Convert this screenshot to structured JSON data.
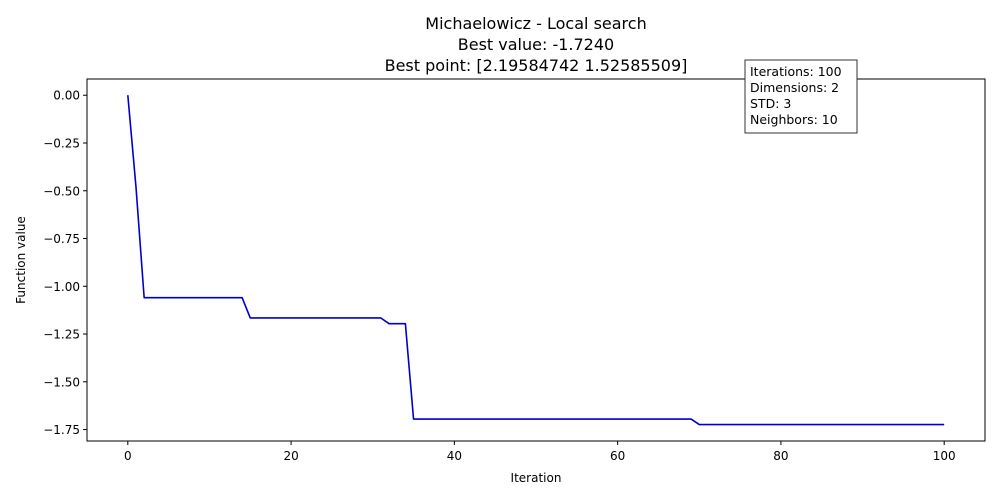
{
  "chart_data": {
    "type": "line",
    "title": "Michaelowicz - Local search",
    "subtitle_lines": [
      "Best value: -1.7240",
      "Best point: [2.19584742 1.52585509]"
    ],
    "xlabel": "Iteration",
    "ylabel": "Function value",
    "xlim": [
      -5,
      105
    ],
    "ylim": [
      -1.81,
      0.085
    ],
    "xticks": [
      0,
      20,
      40,
      60,
      80,
      100
    ],
    "yticks": [
      0.0,
      -0.25,
      -0.5,
      -0.75,
      -1.0,
      -1.25,
      -1.5,
      -1.75
    ],
    "xtick_labels": [
      "0",
      "20",
      "40",
      "60",
      "80",
      "100"
    ],
    "ytick_labels": [
      "0.00",
      "−0.25",
      "−0.50",
      "−0.75",
      "−1.00",
      "−1.25",
      "−1.50",
      "−1.75"
    ],
    "grid": false,
    "series": [
      {
        "color": "#0000cc",
        "x": [
          0,
          1,
          2,
          14,
          15,
          31,
          32,
          34,
          35,
          69,
          70,
          100
        ],
        "y": [
          0.0,
          -0.48,
          -1.06,
          -1.06,
          -1.166,
          -1.166,
          -1.196,
          -1.196,
          -1.695,
          -1.695,
          -1.724,
          -1.724
        ]
      }
    ],
    "info_box": {
      "placement": "top-right",
      "lines": [
        "Iterations: 100",
        "Dimensions: 2",
        "STD: 3",
        "Neighbors: 10"
      ]
    }
  }
}
